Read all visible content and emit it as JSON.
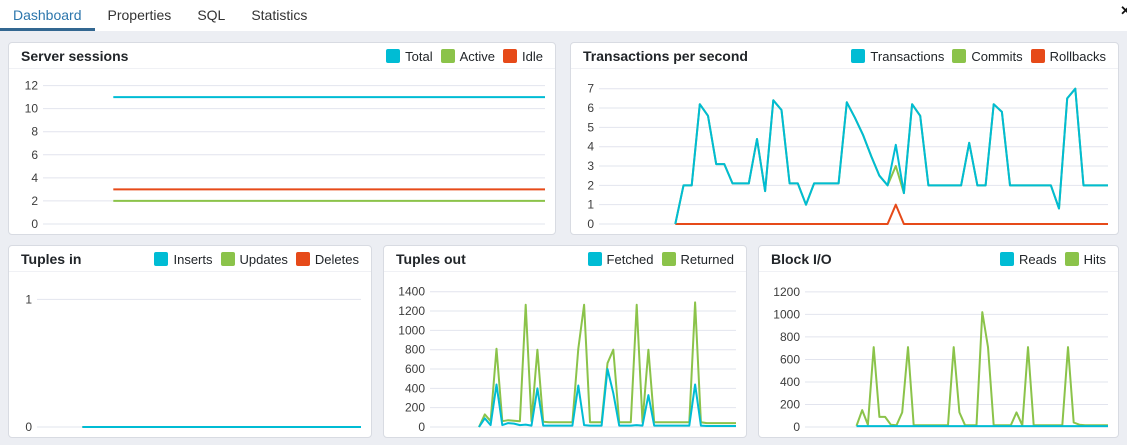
{
  "tab_bar": {
    "items": [
      {
        "label": "Dashboard",
        "active": true
      },
      {
        "label": "Properties",
        "active": false
      },
      {
        "label": "SQL",
        "active": false
      },
      {
        "label": "Statistics",
        "active": false
      }
    ],
    "close_icon": "✕"
  },
  "colors": {
    "tab_active_text": "#2c76ac",
    "tab_underline": "#336791",
    "series_cyan": "#00BCD4",
    "series_green": "#8BC34A",
    "series_orange": "#E64A19",
    "gridline": "#e2e4ee",
    "panel_border": "#d8dbe2",
    "page_background": "#eceef3"
  },
  "chart_data": [
    {
      "id": "server-sessions",
      "type": "line",
      "title": "Server sessions",
      "xlabel": "",
      "ylabel": "",
      "ylim": [
        0,
        12.4
      ],
      "yticks": [
        0,
        2,
        4,
        6,
        8,
        10,
        12
      ],
      "grid": true,
      "legend_position": "header-right",
      "label_gutter": 34,
      "x_start_frac": 0.14,
      "series": [
        {
          "name": "Total",
          "color": "#00BCD4",
          "values": [
            11,
            11
          ]
        },
        {
          "name": "Active",
          "color": "#8BC34A",
          "values": [
            2,
            2
          ]
        },
        {
          "name": "Idle",
          "color": "#E64A19",
          "values": [
            3,
            3
          ]
        }
      ]
    },
    {
      "id": "transactions-per-second",
      "type": "line",
      "title": "Transactions per second",
      "xlabel": "",
      "ylabel": "",
      "ylim": [
        0,
        7.4
      ],
      "yticks": [
        0,
        1,
        2,
        3,
        4,
        5,
        6,
        7
      ],
      "grid": true,
      "legend_position": "header-right",
      "label_gutter": 28,
      "x_start_frac": 0.15,
      "series": [
        {
          "name": "Transactions",
          "color": "#00BCD4",
          "values": [
            0,
            2,
            2,
            6.2,
            5.6,
            3.1,
            3.1,
            2.1,
            2.1,
            2.1,
            4.4,
            1.7,
            6.4,
            5.9,
            2.1,
            2.1,
            1,
            2.1,
            2.1,
            2.1,
            2.1,
            6.3,
            5.5,
            4.6,
            3.5,
            2.5,
            2,
            4.1,
            1.6,
            6.2,
            5.6,
            2,
            2,
            2,
            2,
            2,
            4.2,
            2,
            2,
            6.2,
            5.8,
            2,
            2,
            2,
            2,
            2,
            2,
            0.8,
            6.5,
            7,
            2,
            2,
            2,
            2
          ]
        },
        {
          "name": "Commits",
          "color": "#8BC34A",
          "values": [
            0,
            2,
            2,
            6.2,
            5.6,
            3.1,
            3.1,
            2.1,
            2.1,
            2.1,
            4.4,
            1.7,
            6.4,
            5.9,
            2.1,
            2.1,
            1,
            2.1,
            2.1,
            2.1,
            2.1,
            6.3,
            5.5,
            4.6,
            3.5,
            2.5,
            2,
            3,
            1.6,
            6.2,
            5.6,
            2,
            2,
            2,
            2,
            2,
            4.2,
            2,
            2,
            6.2,
            5.8,
            2,
            2,
            2,
            2,
            2,
            2,
            0.8,
            6.5,
            7,
            2,
            2,
            2,
            2
          ]
        },
        {
          "name": "Rollbacks",
          "color": "#E64A19",
          "values": [
            0,
            0,
            0,
            0,
            0,
            0,
            0,
            0,
            0,
            0,
            0,
            0,
            0,
            0,
            0,
            0,
            0,
            0,
            0,
            0,
            0,
            0,
            0,
            0,
            0,
            0,
            0,
            1,
            0,
            0,
            0,
            0,
            0,
            0,
            0,
            0,
            0,
            0,
            0,
            0,
            0,
            0,
            0,
            0,
            0,
            0,
            0,
            0,
            0,
            0,
            0,
            0,
            0,
            0
          ]
        }
      ]
    },
    {
      "id": "tuples-in",
      "type": "line",
      "title": "Tuples in",
      "xlabel": "",
      "ylabel": "",
      "ylim": [
        0,
        1.12
      ],
      "yticks": [
        0,
        1
      ],
      "grid": true,
      "legend_position": "header-right",
      "label_gutter": 28,
      "x_start_frac": 0.14,
      "series": [
        {
          "name": "Inserts",
          "color": "#00BCD4",
          "values": [
            0,
            0
          ]
        },
        {
          "name": "Updates",
          "color": "#8BC34A",
          "values": [
            0,
            0
          ]
        },
        {
          "name": "Deletes",
          "color": "#E64A19",
          "values": [
            0,
            0
          ]
        }
      ]
    },
    {
      "id": "tuples-out",
      "type": "line",
      "title": "Tuples out",
      "xlabel": "",
      "ylabel": "",
      "ylim": [
        0,
        1480
      ],
      "yticks": [
        0,
        200,
        400,
        600,
        800,
        1000,
        1200,
        1400
      ],
      "grid": true,
      "legend_position": "header-right",
      "label_gutter": 46,
      "x_start_frac": 0.16,
      "series": [
        {
          "name": "Fetched",
          "color": "#00BCD4",
          "values": [
            0,
            90,
            20,
            440,
            20,
            40,
            35,
            20,
            25,
            15,
            400,
            15,
            15,
            15,
            15,
            15,
            15,
            430,
            20,
            15,
            15,
            15,
            600,
            350,
            15,
            15,
            15,
            20,
            15,
            330,
            15,
            15,
            15,
            15,
            15,
            15,
            15,
            440,
            15,
            10,
            10,
            10,
            10,
            10,
            10
          ]
        },
        {
          "name": "Returned",
          "color": "#8BC34A",
          "values": [
            0,
            130,
            60,
            810,
            60,
            70,
            65,
            60,
            1265,
            60,
            800,
            55,
            50,
            50,
            50,
            50,
            50,
            810,
            1265,
            50,
            50,
            50,
            660,
            800,
            50,
            50,
            50,
            1265,
            50,
            800,
            50,
            50,
            50,
            50,
            50,
            50,
            50,
            1290,
            50,
            40,
            40,
            40,
            40,
            40,
            40
          ]
        }
      ]
    },
    {
      "id": "block-io",
      "type": "line",
      "title": "Block I/O",
      "xlabel": "",
      "ylabel": "",
      "ylim": [
        0,
        1270
      ],
      "yticks": [
        0,
        200,
        400,
        600,
        800,
        1000,
        1200
      ],
      "grid": true,
      "legend_position": "header-right",
      "label_gutter": 46,
      "x_start_frac": 0.17,
      "series": [
        {
          "name": "Reads",
          "color": "#00BCD4",
          "values": [
            8,
            8
          ]
        },
        {
          "name": "Hits",
          "color": "#8BC34A",
          "values": [
            10,
            150,
            20,
            710,
            90,
            90,
            20,
            15,
            130,
            710,
            15,
            15,
            15,
            15,
            15,
            15,
            15,
            710,
            130,
            15,
            15,
            15,
            1020,
            710,
            15,
            15,
            15,
            15,
            130,
            15,
            710,
            15,
            15,
            15,
            15,
            15,
            15,
            710,
            40,
            20,
            15,
            15,
            15,
            15,
            15
          ]
        }
      ]
    }
  ]
}
